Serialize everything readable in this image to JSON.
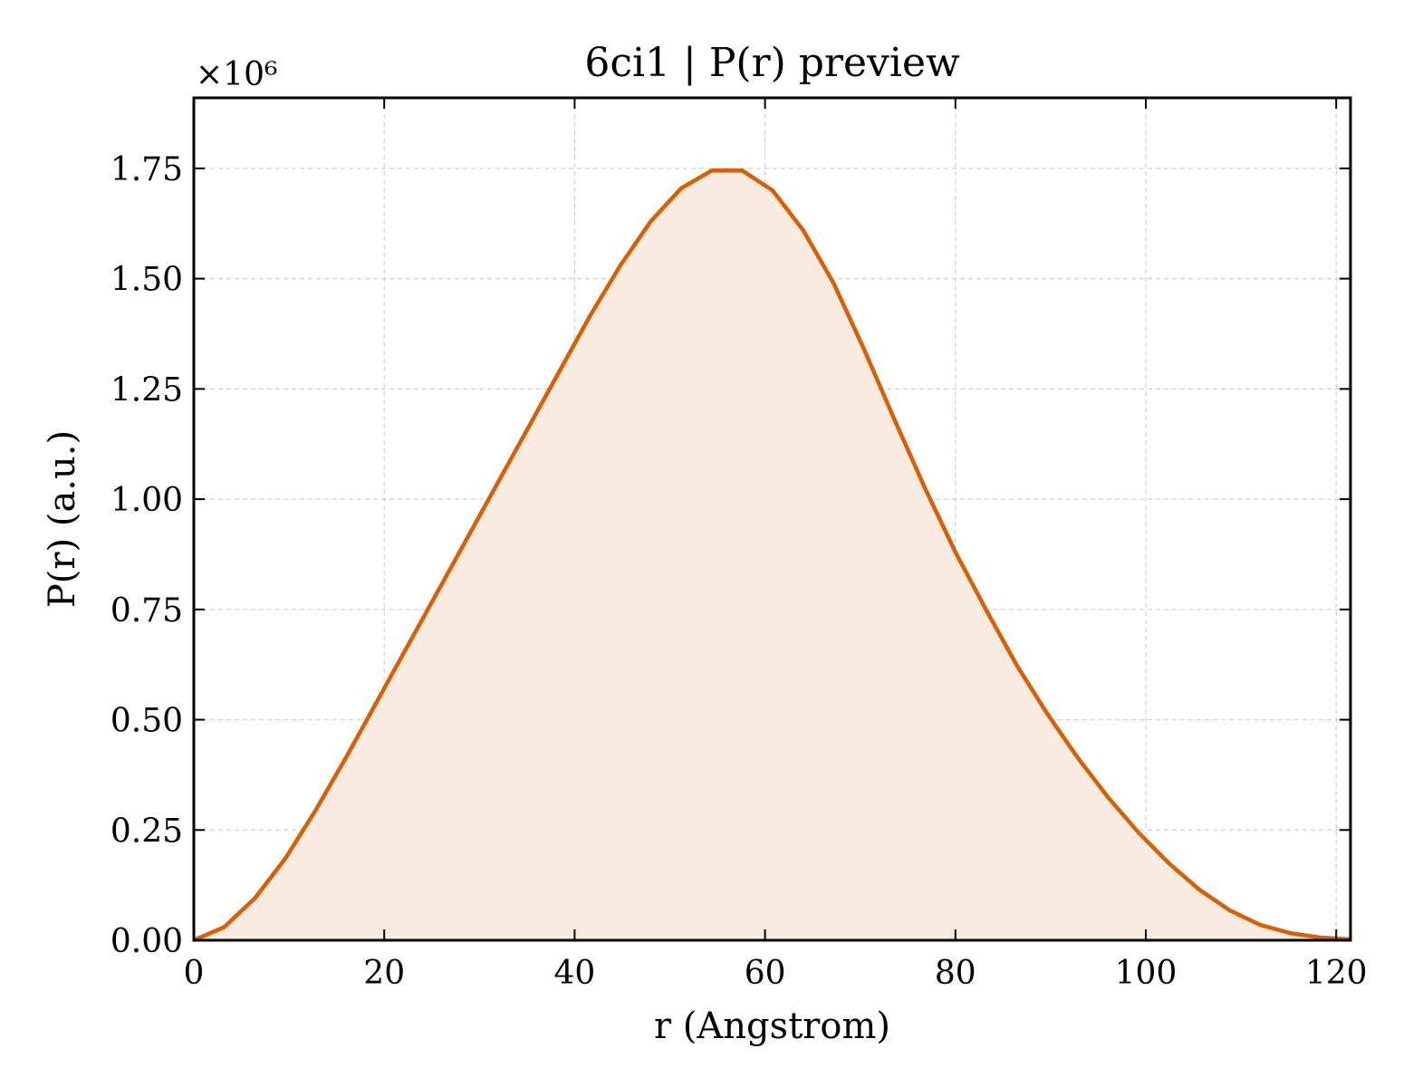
{
  "chart_data": {
    "type": "area",
    "title": "6ci1 | P(r) preview",
    "xlabel": "r (Angstrom)",
    "ylabel": "P(r) (a.u.)",
    "y_multiplier_label": "×10⁶",
    "xlim": [
      0,
      121.5
    ],
    "ylim": [
      0,
      1.91
    ],
    "xticks": [
      0,
      20,
      40,
      60,
      80,
      100,
      120
    ],
    "yticks": [
      0.0,
      0.25,
      0.5,
      0.75,
      1.0,
      1.25,
      1.5,
      1.75
    ],
    "xtick_labels": [
      "0",
      "20",
      "40",
      "60",
      "80",
      "100",
      "120"
    ],
    "ytick_labels": [
      "0.00",
      "0.25",
      "0.50",
      "0.75",
      "1.00",
      "1.25",
      "1.50",
      "1.75"
    ],
    "grid": true,
    "line_color": "#d95f02",
    "fill_color": "#f9ebe0",
    "x": [
      0,
      3.2,
      6.4,
      9.6,
      12.8,
      16,
      19.2,
      22.4,
      25.6,
      28.8,
      32,
      35.2,
      38.4,
      41.6,
      44.8,
      48,
      51.2,
      54.4,
      57.6,
      60.8,
      64,
      67.2,
      70.4,
      73.6,
      76.8,
      80,
      83.2,
      86.4,
      89.6,
      92.8,
      96,
      99.2,
      102.4,
      105.6,
      108.8,
      112,
      115.2,
      118.4,
      121.5
    ],
    "y": [
      0.0,
      0.03,
      0.095,
      0.185,
      0.295,
      0.415,
      0.54,
      0.665,
      0.79,
      0.915,
      1.04,
      1.165,
      1.29,
      1.415,
      1.53,
      1.63,
      1.705,
      1.745,
      1.745,
      1.7,
      1.61,
      1.49,
      1.34,
      1.18,
      1.025,
      0.88,
      0.75,
      0.625,
      0.515,
      0.415,
      0.325,
      0.245,
      0.175,
      0.115,
      0.068,
      0.035,
      0.016,
      0.006,
      0.002
    ]
  }
}
